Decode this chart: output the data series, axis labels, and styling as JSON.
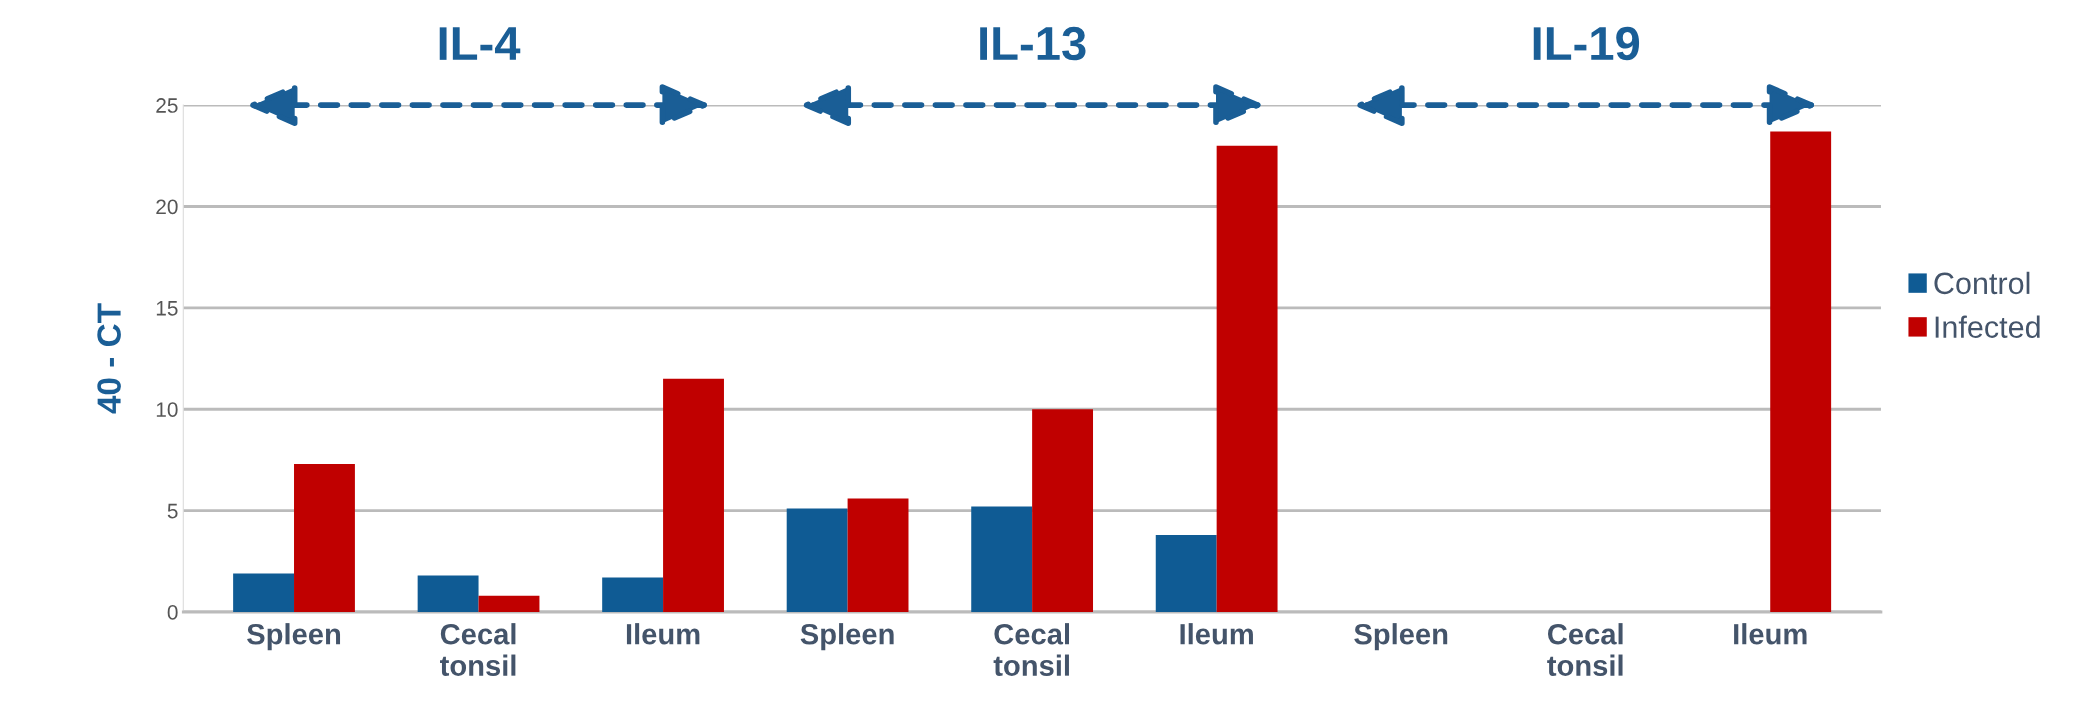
{
  "chart_data": {
    "type": "bar",
    "ylabel": "40 - CT",
    "categories": [
      "Spleen",
      "Cecal\ntonsil",
      "Ileum",
      "Spleen",
      "Cecal\ntonsil",
      "Ileum",
      "Spleen",
      "Cecal\ntonsil",
      "Ileum"
    ],
    "series": [
      {
        "name": "Control",
        "color": "#0f5b94",
        "values": [
          1.9,
          1.8,
          1.7,
          5.1,
          5.2,
          3.8,
          null,
          null,
          null
        ]
      },
      {
        "name": "Infected",
        "color": "#c00000",
        "values": [
          7.3,
          0.8,
          11.5,
          5.6,
          10.0,
          23.0,
          null,
          null,
          23.7
        ]
      }
    ],
    "annotations": [
      "IL-4",
      "IL-13",
      "IL-19"
    ],
    "ylim": [
      0,
      25
    ],
    "yticks": [
      0,
      5,
      10,
      15,
      20,
      25
    ],
    "grid": "y",
    "legend": "right"
  }
}
